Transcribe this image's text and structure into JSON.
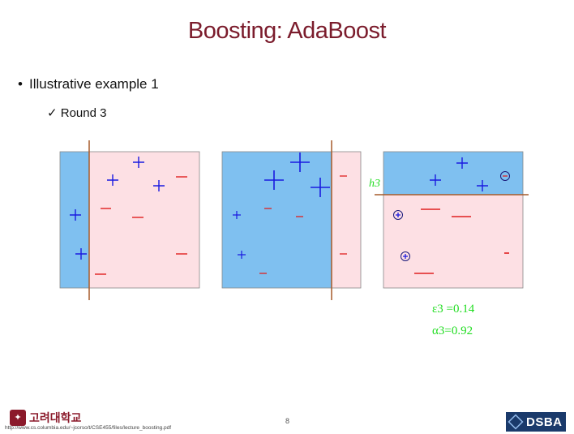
{
  "slide": {
    "title": "Boosting: AdaBoost",
    "bullet": "Illustrative example 1",
    "sub_bullet": "Round 3",
    "page_number": "8"
  },
  "diagram": {
    "hypothesis_label": "h3",
    "epsilon": "ε3 =0.14",
    "alpha": "α3=0.92",
    "colors": {
      "blue_region": "#7fc0f0",
      "pink_region": "#fde0e4",
      "boundary": "#a65a2a",
      "plus": "#1a1ae0",
      "minus": "#e02020",
      "annotation": "#22dd22"
    }
  },
  "footer": {
    "university": "고려대학교",
    "url": "http://www.cs.columbia.edu/~jcorso/t/CSE455/files/lecture_boosting.pdf",
    "dsba": "DSBA"
  }
}
